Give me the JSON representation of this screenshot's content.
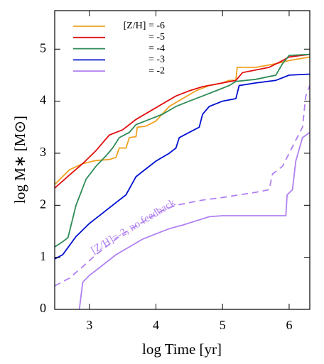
{
  "chart_data": {
    "type": "line",
    "xlabel": "log Time [yr]",
    "ylabel": "log M∗ [M⊙]",
    "annotation": "[Z/H]=-2, no feedback",
    "legend": "upper left",
    "xlim": [
      2.48,
      6.31
    ],
    "ylim": [
      0,
      5.74
    ],
    "xticks": [
      3,
      4,
      5,
      6
    ],
    "yticks": [
      0,
      1,
      2,
      3,
      4,
      5
    ],
    "series": [
      {
        "name": "[Z/H] = -6",
        "color": "#f0a020",
        "x": [
          2.48,
          2.7,
          2.9,
          3.1,
          3.3,
          3.4,
          3.45,
          3.55,
          3.6,
          3.7,
          3.72,
          3.85,
          4.0,
          4.2,
          4.4,
          4.6,
          4.8,
          5.0,
          5.1,
          5.2,
          5.22,
          5.5,
          5.8,
          6.0,
          6.31
        ],
        "values": [
          2.4,
          2.68,
          2.8,
          2.86,
          2.88,
          2.92,
          3.1,
          3.1,
          3.3,
          3.32,
          3.5,
          3.52,
          3.62,
          3.9,
          4.05,
          4.2,
          4.3,
          4.35,
          4.4,
          4.4,
          4.65,
          4.65,
          4.72,
          4.78,
          4.85
        ]
      },
      {
        "name": "= -5",
        "color": "#e01010",
        "x": [
          2.48,
          2.7,
          2.9,
          3.1,
          3.3,
          3.5,
          3.7,
          3.9,
          4.1,
          4.3,
          4.5,
          4.7,
          5.0,
          5.2,
          5.3,
          5.5,
          5.7,
          5.9,
          6.0,
          6.31
        ],
        "values": [
          2.33,
          2.58,
          2.8,
          3.05,
          3.35,
          3.45,
          3.65,
          3.8,
          3.95,
          4.1,
          4.2,
          4.28,
          4.35,
          4.4,
          4.55,
          4.6,
          4.65,
          4.78,
          4.85,
          4.9
        ]
      },
      {
        "name": "= -4",
        "color": "#2e8b57",
        "x": [
          2.48,
          2.6,
          2.68,
          2.8,
          2.95,
          3.1,
          3.25,
          3.35,
          3.45,
          3.6,
          3.7,
          3.9,
          4.1,
          4.3,
          4.5,
          4.7,
          4.9,
          5.1,
          5.2,
          5.5,
          5.8,
          5.9,
          6.0,
          6.31
        ],
        "values": [
          1.2,
          1.3,
          1.38,
          2.0,
          2.5,
          2.75,
          2.95,
          3.1,
          3.3,
          3.4,
          3.55,
          3.65,
          3.75,
          3.9,
          4.0,
          4.1,
          4.2,
          4.3,
          4.38,
          4.42,
          4.5,
          4.72,
          4.88,
          4.9
        ]
      },
      {
        "name": "= -3",
        "color": "#0010d0",
        "x": [
          2.48,
          2.6,
          2.8,
          3.0,
          3.2,
          3.4,
          3.55,
          3.7,
          3.85,
          4.0,
          4.2,
          4.3,
          4.35,
          4.5,
          4.65,
          4.7,
          4.8,
          5.0,
          5.2,
          5.25,
          5.5,
          5.8,
          6.0,
          6.31
        ],
        "values": [
          0.97,
          1.05,
          1.4,
          1.65,
          1.85,
          2.05,
          2.2,
          2.55,
          2.7,
          2.85,
          3.0,
          3.1,
          3.3,
          3.4,
          3.5,
          3.75,
          3.9,
          4.0,
          4.05,
          4.3,
          4.35,
          4.4,
          4.5,
          4.52
        ]
      },
      {
        "name": "= -2",
        "color": "#b080f0",
        "x": [
          2.85,
          2.9,
          3.0,
          3.2,
          3.4,
          3.6,
          3.8,
          4.0,
          4.2,
          4.4,
          4.6,
          4.8,
          5.0,
          5.5,
          5.95,
          5.97,
          6.05,
          6.1,
          6.2,
          6.31
        ],
        "values": [
          0,
          0.52,
          0.65,
          0.85,
          1.05,
          1.2,
          1.35,
          1.45,
          1.55,
          1.62,
          1.7,
          1.78,
          1.8,
          1.8,
          1.8,
          2.2,
          2.3,
          2.85,
          3.3,
          3.4
        ]
      },
      {
        "color": "#b080f0",
        "dashed": true,
        "x": [
          2.48,
          2.7,
          2.9,
          3.1,
          3.3,
          3.5,
          3.7,
          3.9,
          4.1,
          4.3,
          4.5,
          4.7,
          5.0,
          5.5,
          5.7,
          5.75,
          5.9,
          6.0,
          6.2,
          6.25,
          6.31
        ],
        "values": [
          0.45,
          0.6,
          0.82,
          1.05,
          1.25,
          1.45,
          1.6,
          1.75,
          1.9,
          2.0,
          2.05,
          2.1,
          2.15,
          2.25,
          2.3,
          2.6,
          2.75,
          3.0,
          3.5,
          4.1,
          4.3
        ]
      }
    ]
  }
}
